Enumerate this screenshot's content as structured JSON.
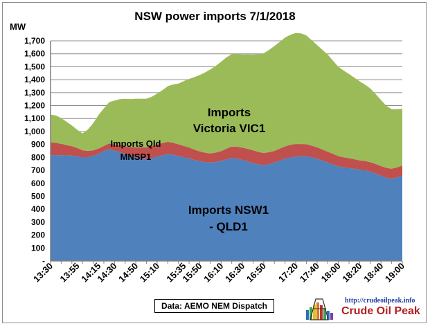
{
  "chart_data": {
    "type": "area",
    "stacked": true,
    "title": "NSW power imports 7/1/2018",
    "ylabel": "MW",
    "xlabel": "",
    "ylim": [
      0,
      1700
    ],
    "ytick_step": 100,
    "ytick_labels": [
      "-",
      "100",
      "200",
      "300",
      "400",
      "500",
      "600",
      "700",
      "800",
      "900",
      "1,000",
      "1,100",
      "1,200",
      "1,300",
      "1,400",
      "1,500",
      "1,600",
      "1,700"
    ],
    "grid": true,
    "x": [
      "13:30",
      "13:35",
      "13:40",
      "13:45",
      "13:50",
      "13:55",
      "14:00",
      "14:05",
      "14:10",
      "14:15",
      "14:20",
      "14:25",
      "14:30",
      "14:35",
      "14:40",
      "14:45",
      "14:50",
      "14:55",
      "15:00",
      "15:05",
      "15:10",
      "15:15",
      "15:20",
      "15:25",
      "15:30",
      "15:35",
      "15:40",
      "15:45",
      "15:50",
      "15:55",
      "16:00",
      "16:05",
      "16:10",
      "16:15",
      "16:20",
      "16:25",
      "16:30",
      "16:35",
      "16:40",
      "16:45",
      "16:50",
      "16:55",
      "17:00",
      "17:05",
      "17:10",
      "17:15",
      "17:20",
      "17:25",
      "17:30",
      "17:35",
      "17:40",
      "17:45",
      "17:50",
      "17:55",
      "18:00",
      "18:05",
      "18:10",
      "18:15",
      "18:20",
      "18:25",
      "18:30",
      "18:35",
      "18:40",
      "18:45",
      "18:50",
      "18:55",
      "19:00"
    ],
    "x_tick_labels": [
      "13:30",
      "13:55",
      "14:15",
      "14:30",
      "14:50",
      "15:10",
      "15:35",
      "15:50",
      "16:10",
      "16:30",
      "16:50",
      "17:20",
      "17:40",
      "18:00",
      "18:20",
      "18:40",
      "19:00"
    ],
    "series": [
      {
        "name": "Imports NSW1 - QLD1",
        "color": "#4f81bd",
        "values": [
          815,
          818,
          816,
          815,
          814,
          808,
          800,
          802,
          812,
          828,
          848,
          865,
          850,
          840,
          825,
          810,
          800,
          792,
          788,
          795,
          805,
          815,
          825,
          820,
          810,
          802,
          792,
          780,
          770,
          763,
          760,
          765,
          772,
          785,
          795,
          790,
          780,
          768,
          755,
          745,
          740,
          748,
          760,
          775,
          790,
          800,
          805,
          808,
          808,
          800,
          790,
          775,
          760,
          745,
          730,
          722,
          718,
          712,
          705,
          700,
          690,
          675,
          658,
          643,
          635,
          645,
          658
        ]
      },
      {
        "name": "Imports Qld MNSP1",
        "color": "#c0504d",
        "values": [
          100,
          95,
          88,
          80,
          72,
          65,
          55,
          48,
          42,
          40,
          40,
          42,
          48,
          55,
          62,
          70,
          78,
          85,
          90,
          93,
          95,
          96,
          95,
          93,
          90,
          87,
          84,
          80,
          76,
          73,
          70,
          72,
          76,
          82,
          88,
          92,
          95,
          98,
          100,
          97,
          94,
          92,
          90,
          92,
          95,
          97,
          98,
          95,
          93,
          90,
          88,
          86,
          84,
          82,
          80,
          78,
          76,
          74,
          72,
          72,
          73,
          74,
          75,
          76,
          77,
          77,
          78
        ]
      },
      {
        "name": "Imports Victoria VIC1",
        "color": "#9bbb59",
        "values": [
          215,
          210,
          200,
          180,
          160,
          140,
          130,
          165,
          210,
          260,
          290,
          320,
          340,
          355,
          365,
          370,
          375,
          375,
          375,
          380,
          392,
          408,
          430,
          450,
          470,
          500,
          530,
          560,
          590,
          620,
          650,
          670,
          690,
          705,
          715,
          718,
          720,
          730,
          740,
          755,
          770,
          790,
          810,
          825,
          840,
          850,
          858,
          855,
          840,
          815,
          790,
          770,
          750,
          720,
          690,
          670,
          650,
          630,
          610,
          590,
          570,
          540,
          510,
          480,
          460,
          450,
          440
        ]
      }
    ],
    "area_labels": [
      "Imports Victoria VIC1",
      "Imports Qld MNSP1",
      "Imports NSW1 - QLD1"
    ]
  },
  "annotations": {
    "vic_line1": "Imports",
    "vic_line2": "Victoria VIC1",
    "qld_line1": "Imports Qld",
    "qld_line2": "MNSP1",
    "nsw_line1": "Imports NSW1",
    "nsw_line2": "- QLD1"
  },
  "source_note": "Data: AEMO NEM Dispatch",
  "logo": {
    "url_text": "http://crudeoilpeak.info",
    "name": "Crude Oil Peak"
  }
}
